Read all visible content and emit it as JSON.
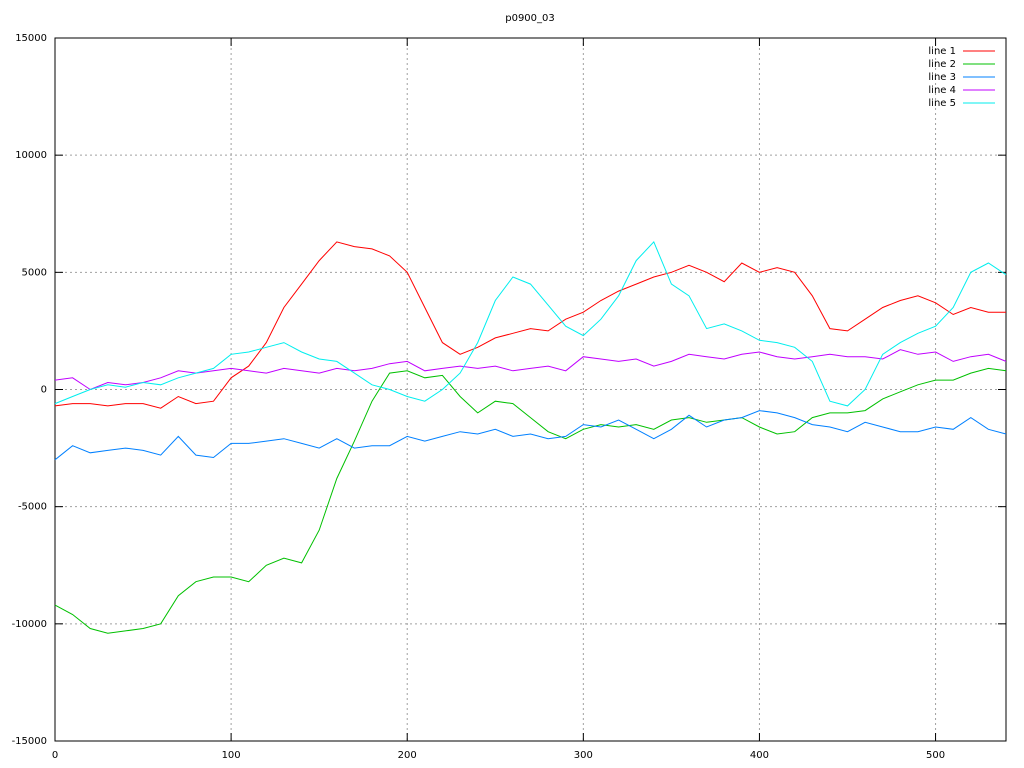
{
  "chart_data": {
    "type": "line",
    "title": "p0900_03",
    "x": [
      0,
      10,
      20,
      30,
      40,
      50,
      60,
      70,
      80,
      90,
      100,
      110,
      120,
      130,
      140,
      150,
      160,
      170,
      180,
      190,
      200,
      210,
      220,
      230,
      240,
      250,
      260,
      270,
      280,
      290,
      300,
      310,
      320,
      330,
      340,
      350,
      360,
      370,
      380,
      390,
      400,
      410,
      420,
      430,
      440,
      450,
      460,
      470,
      480,
      490,
      500,
      510,
      520,
      530,
      540
    ],
    "series": [
      {
        "name": "line 1",
        "color": "#ff0000",
        "values": [
          -700,
          -600,
          -600,
          -700,
          -600,
          -600,
          -800,
          -300,
          -600,
          -500,
          500,
          1000,
          2000,
          3500,
          4500,
          5500,
          6300,
          6100,
          6000,
          5700,
          5000,
          3500,
          2000,
          1500,
          1800,
          2200,
          2400,
          2600,
          2500,
          3000,
          3300,
          3800,
          4200,
          4500,
          4800,
          5000,
          5300,
          5000,
          4600,
          5400,
          5000,
          5200,
          5000,
          4000,
          2600,
          2500,
          3000,
          3500,
          3800,
          4000,
          3700,
          3200,
          3500,
          3300,
          3300
        ]
      },
      {
        "name": "line 2",
        "color": "#00c000",
        "values": [
          -9200,
          -9600,
          -10200,
          -10400,
          -10300,
          -10200,
          -10000,
          -8800,
          -8200,
          -8000,
          -8000,
          -8200,
          -7500,
          -7200,
          -7400,
          -6000,
          -3800,
          -2200,
          -500,
          700,
          800,
          500,
          600,
          -300,
          -1000,
          -500,
          -600,
          -1200,
          -1800,
          -2100,
          -1700,
          -1500,
          -1600,
          -1500,
          -1700,
          -1300,
          -1200,
          -1400,
          -1300,
          -1200,
          -1600,
          -1900,
          -1800,
          -1200,
          -1000,
          -1000,
          -900,
          -400,
          -100,
          200,
          400,
          400,
          700,
          900,
          800
        ]
      },
      {
        "name": "line 3",
        "color": "#0080ff",
        "values": [
          -3000,
          -2400,
          -2700,
          -2600,
          -2500,
          -2600,
          -2800,
          -2000,
          -2800,
          -2900,
          -2300,
          -2300,
          -2200,
          -2100,
          -2300,
          -2500,
          -2100,
          -2500,
          -2400,
          -2400,
          -2000,
          -2200,
          -2000,
          -1800,
          -1900,
          -1700,
          -2000,
          -1900,
          -2100,
          -2000,
          -1500,
          -1600,
          -1300,
          -1700,
          -2100,
          -1700,
          -1100,
          -1600,
          -1300,
          -1200,
          -900,
          -1000,
          -1200,
          -1500,
          -1600,
          -1800,
          -1400,
          -1600,
          -1800,
          -1800,
          -1600,
          -1700,
          -1200,
          -1700,
          -1900
        ]
      },
      {
        "name": "line 4",
        "color": "#c000ff",
        "values": [
          400,
          500,
          0,
          300,
          200,
          300,
          500,
          800,
          700,
          800,
          900,
          800,
          700,
          900,
          800,
          700,
          900,
          800,
          900,
          1100,
          1200,
          800,
          900,
          1000,
          900,
          1000,
          800,
          900,
          1000,
          800,
          1400,
          1300,
          1200,
          1300,
          1000,
          1200,
          1500,
          1400,
          1300,
          1500,
          1600,
          1400,
          1300,
          1400,
          1500,
          1400,
          1400,
          1300,
          1700,
          1500,
          1600,
          1200,
          1400,
          1500,
          1200
        ]
      },
      {
        "name": "line 5",
        "color": "#00eeee",
        "values": [
          -600,
          -300,
          0,
          200,
          100,
          300,
          200,
          500,
          700,
          900,
          1500,
          1600,
          1800,
          2000,
          1600,
          1300,
          1200,
          700,
          200,
          0,
          -300,
          -500,
          0,
          700,
          2000,
          3800,
          4800,
          4500,
          3600,
          2700,
          2300,
          3000,
          4000,
          5500,
          6300,
          4500,
          4000,
          2600,
          2800,
          2500,
          2100,
          2000,
          1800,
          1200,
          -500,
          -700,
          0,
          1500,
          2000,
          2400,
          2700,
          3500,
          5000,
          5400,
          4900
        ]
      }
    ],
    "xlim": [
      0,
      540
    ],
    "xticks": [
      0,
      100,
      200,
      300,
      400,
      500
    ],
    "ylim": [
      -15000,
      15000
    ],
    "yticks": [
      -15000,
      -10000,
      -5000,
      0,
      5000,
      10000,
      15000
    ],
    "grid": true,
    "legend": "top-right"
  }
}
